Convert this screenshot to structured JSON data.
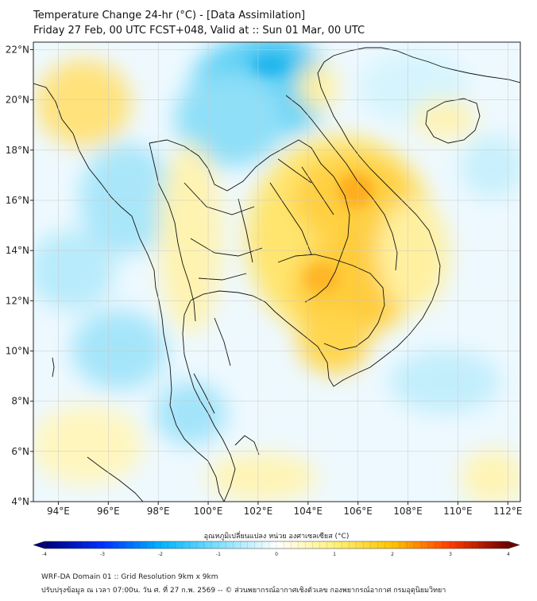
{
  "title": {
    "line1": "Temperature Change 24-hr (°C) - [Data Assimilation]",
    "line2": "Friday 27 Feb, 00 UTC FCST+048, Valid at :: Sun 01 Mar, 00 UTC"
  },
  "map": {
    "lon_ticks": [
      "94°E",
      "96°E",
      "98°E",
      "100°E",
      "102°E",
      "104°E",
      "106°E",
      "108°E",
      "110°E",
      "112°E"
    ],
    "lat_ticks": [
      "22°N",
      "20°N",
      "18°N",
      "16°N",
      "14°N",
      "12°N",
      "10°N",
      "8°N",
      "6°N",
      "4°N"
    ],
    "lon_values": [
      94,
      96,
      98,
      100,
      102,
      104,
      106,
      108,
      110,
      112
    ],
    "lat_values": [
      22,
      20,
      18,
      16,
      14,
      12,
      10,
      8,
      6,
      4
    ],
    "lon_range": [
      93,
      112.5
    ],
    "lat_range": [
      4,
      22.3
    ],
    "grid": true
  },
  "colorbar": {
    "title": "อุณหภูมิเปลี่ยนแปลง หน่วย องศาเซลเซียส (°C)",
    "labels": [
      "-4",
      "-3",
      "-2",
      "-1",
      "0",
      "1",
      "2",
      "3",
      "4"
    ],
    "min": -4,
    "max": 4,
    "colors": [
      "#00007a",
      "#0030ff",
      "#00b4ff",
      "#7fe0ff",
      "#ffffff",
      "#fff27a",
      "#ffc400",
      "#ff3c00",
      "#6e0000"
    ]
  },
  "footer": {
    "line1": "WRF-DA Domain 01 :: Grid Resolution 9km x 9km",
    "line2": "ปรับปรุงข้อมูล ณ เวลา 07:00น. วัน ศ. ที่ 27 ก.พ. 2569 -- © ส่วนพยากรณ์อากาศเชิงตัวเลข กองพยากรณ์อากาศ กรมอุตุนิยมวิทยา"
  }
}
